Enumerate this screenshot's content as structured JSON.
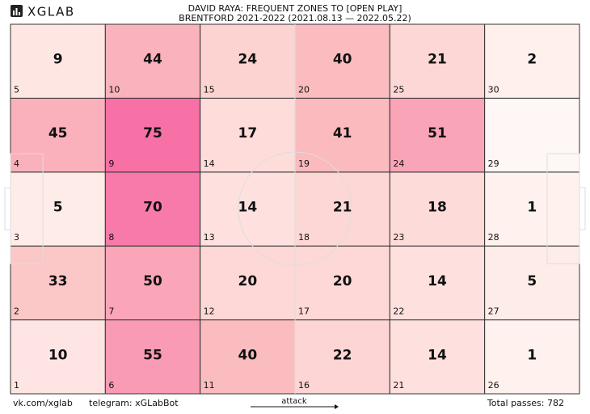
{
  "logo": "XGLAB",
  "chart_data": {
    "type": "zone-heatmap",
    "title": "DAVID RAYA: FREQUENT ZONES TO [OPEN PLAY]",
    "subtitle": "BRENTFORD 2021-2022 (2021.08.13 — 2022.05.22)",
    "categories": [
      1,
      2,
      3,
      4,
      5,
      6,
      7,
      8,
      9,
      10,
      11,
      12,
      13,
      14,
      15,
      16,
      17,
      18,
      19,
      20,
      21,
      22,
      23,
      24,
      25,
      26,
      27,
      28,
      29,
      30
    ],
    "values": [
      10,
      33,
      5,
      45,
      9,
      55,
      50,
      70,
      75,
      44,
      40,
      20,
      14,
      17,
      24,
      22,
      20,
      21,
      41,
      40,
      14,
      14,
      18,
      51,
      21,
      1,
      5,
      1,
      null,
      2
    ],
    "color": "#f768a1",
    "direction_label": "attack",
    "total_label": "Total passes:",
    "total": 782
  },
  "footer": {
    "vk": "vk.com/xglab",
    "telegram": "telegram: xGLabBot"
  }
}
